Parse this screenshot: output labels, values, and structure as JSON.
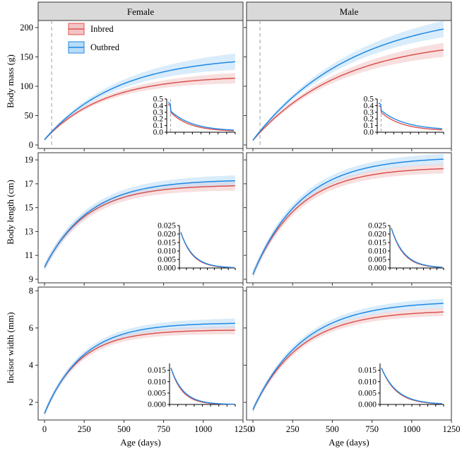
{
  "figure": {
    "xlabel": "Age (days)",
    "facets": [
      "Female",
      "Male"
    ],
    "legend": [
      {
        "label": "Inbred",
        "color": "#d9534f"
      },
      {
        "label": "Outbred",
        "color": "#1e88e5"
      }
    ],
    "colors": {
      "inbred": "#d9534f",
      "outbred": "#1e88e5",
      "inbred_band": "#f3c4c4",
      "outbred_band": "#b9dcf7",
      "strip_fill": "#d9d9d9",
      "vline": "#9e9e9e"
    },
    "vline_age": 45
  },
  "chart_data": [
    {
      "type": "line",
      "row": 0,
      "col": 0,
      "facet": "Female",
      "ylabel": "Body mass (g)",
      "xlim": [
        -40,
        1250
      ],
      "ylim": [
        -6,
        212
      ],
      "xticks": [
        0,
        250,
        500,
        750,
        1000,
        1250
      ],
      "yticks": [
        0,
        50,
        100,
        150,
        200
      ],
      "curves": {
        "inbred": {
          "start": 9,
          "asymptote": 118,
          "rate": 0.0027,
          "ci_start": 2,
          "ci_end": 9
        },
        "outbred": {
          "start": 9,
          "asymptote": 152,
          "rate": 0.0022,
          "ci_start": 2,
          "ci_end": 14
        }
      },
      "vline": true,
      "inset": {
        "yticks": [
          "0.0",
          "0.1",
          "0.2",
          "0.3",
          "0.4",
          "0.5"
        ],
        "ymax": 0.5,
        "inbred": {
          "peak": 0.42,
          "after": 0.3,
          "rate": 0.0028,
          "floor": 0.01
        },
        "outbred": {
          "peak": 0.45,
          "after": 0.32,
          "rate": 0.0025,
          "floor": 0.015
        },
        "vline": true
      }
    },
    {
      "type": "line",
      "row": 0,
      "col": 1,
      "facet": "Male",
      "ylabel": "",
      "xlim": [
        -40,
        1250
      ],
      "ylim": [
        -6,
        212
      ],
      "xticks": [
        0,
        250,
        500,
        750,
        1000,
        1250
      ],
      "yticks": [
        0,
        50,
        100,
        150,
        200
      ],
      "curves": {
        "inbred": {
          "start": 8,
          "asymptote": 182,
          "rate": 0.0018,
          "ci_start": 2,
          "ci_end": 12
        },
        "outbred": {
          "start": 8,
          "asymptote": 230,
          "rate": 0.0016,
          "ci_start": 2,
          "ci_end": 14
        }
      },
      "vline": true,
      "inset": {
        "yticks": [
          "0.0",
          "0.1",
          "0.2",
          "0.3",
          "0.4",
          "0.5"
        ],
        "ymax": 0.5,
        "inbred": {
          "peak": 0.4,
          "after": 0.3,
          "rate": 0.0025,
          "floor": 0.02
        },
        "outbred": {
          "peak": 0.44,
          "after": 0.33,
          "rate": 0.0022,
          "floor": 0.03
        },
        "vline": true
      }
    },
    {
      "type": "line",
      "row": 1,
      "col": 0,
      "facet": "Female",
      "ylabel": "Body length (cm)",
      "xlim": [
        -40,
        1250
      ],
      "ylim": [
        8.7,
        19.6
      ],
      "xticks": [
        0,
        250,
        500,
        750,
        1000,
        1250
      ],
      "yticks": [
        9,
        11,
        13,
        15,
        17,
        19
      ],
      "curves": {
        "inbred": {
          "start": 10.0,
          "asymptote": 16.9,
          "rate": 0.0038,
          "ci_start": 0.3,
          "ci_end": 0.4
        },
        "outbred": {
          "start": 10.0,
          "asymptote": 17.35,
          "rate": 0.0036,
          "ci_start": 0.3,
          "ci_end": 0.45
        }
      },
      "vline": false,
      "inset": {
        "yticks": [
          "0.000",
          "0.005",
          "0.010",
          "0.015",
          "0.020",
          "0.025"
        ],
        "ymax": 0.025,
        "inbred": {
          "peak": 0.021,
          "after": 0.021,
          "rate": 0.0038,
          "floor": 0.0
        },
        "outbred": {
          "peak": 0.021,
          "after": 0.021,
          "rate": 0.0036,
          "floor": 0.0
        },
        "vline": false
      }
    },
    {
      "type": "line",
      "row": 1,
      "col": 1,
      "facet": "Male",
      "ylabel": "",
      "xlim": [
        -40,
        1250
      ],
      "ylim": [
        8.7,
        19.6
      ],
      "xticks": [
        0,
        250,
        500,
        750,
        1000,
        1250
      ],
      "yticks": [
        9,
        11,
        13,
        15,
        17,
        19
      ],
      "curves": {
        "inbred": {
          "start": 9.4,
          "asymptote": 18.4,
          "rate": 0.0035,
          "ci_start": 0.3,
          "ci_end": 0.4
        },
        "outbred": {
          "start": 9.4,
          "asymptote": 19.25,
          "rate": 0.0033,
          "ci_start": 0.3,
          "ci_end": 0.45
        }
      },
      "vline": false,
      "inset": {
        "yticks": [
          "0.000",
          "0.005",
          "0.010",
          "0.015",
          "0.020",
          "0.025"
        ],
        "ymax": 0.025,
        "inbred": {
          "peak": 0.0235,
          "after": 0.0235,
          "rate": 0.0035,
          "floor": 0.0
        },
        "outbred": {
          "peak": 0.0235,
          "after": 0.0235,
          "rate": 0.0033,
          "floor": 0.0
        },
        "vline": false
      }
    },
    {
      "type": "line",
      "row": 2,
      "col": 0,
      "facet": "Female",
      "ylabel": "Incisor width (mm)",
      "xlim": [
        -40,
        1250
      ],
      "ylim": [
        1.05,
        8.2
      ],
      "xticks": [
        0,
        250,
        500,
        750,
        1000,
        1250
      ],
      "yticks": [
        2,
        4,
        6,
        8
      ],
      "curves": {
        "inbred": {
          "start": 1.4,
          "asymptote": 5.9,
          "rate": 0.0046,
          "ci_start": 0.15,
          "ci_end": 0.22
        },
        "outbred": {
          "start": 1.4,
          "asymptote": 6.28,
          "rate": 0.0042,
          "ci_start": 0.15,
          "ci_end": 0.26
        }
      },
      "vline": false,
      "inset": {
        "yticks": [
          "0.000",
          "0.005",
          "0.010",
          "0.015"
        ],
        "ymax": 0.018,
        "inbred": {
          "peak": 0.016,
          "after": 0.016,
          "rate": 0.0046,
          "floor": 0.0
        },
        "outbred": {
          "peak": 0.016,
          "after": 0.016,
          "rate": 0.0042,
          "floor": 0.0
        },
        "vline": false
      }
    },
    {
      "type": "line",
      "row": 2,
      "col": 1,
      "facet": "Male",
      "ylabel": "",
      "xlim": [
        -40,
        1250
      ],
      "ylim": [
        1.05,
        8.2
      ],
      "xticks": [
        0,
        250,
        500,
        750,
        1000,
        1250
      ],
      "yticks": [
        2,
        4,
        6,
        8
      ],
      "curves": {
        "inbred": {
          "start": 1.6,
          "asymptote": 6.95,
          "rate": 0.0034,
          "ci_start": 0.15,
          "ci_end": 0.22
        },
        "outbred": {
          "start": 1.6,
          "asymptote": 7.45,
          "rate": 0.0032,
          "ci_start": 0.15,
          "ci_end": 0.26
        }
      },
      "vline": false,
      "inset": {
        "yticks": [
          "0.000",
          "0.005",
          "0.010",
          "0.015"
        ],
        "ymax": 0.018,
        "inbred": {
          "peak": 0.016,
          "after": 0.016,
          "rate": 0.0034,
          "floor": 0.0
        },
        "outbred": {
          "peak": 0.016,
          "after": 0.016,
          "rate": 0.0032,
          "floor": 0.0
        },
        "vline": false
      }
    }
  ]
}
